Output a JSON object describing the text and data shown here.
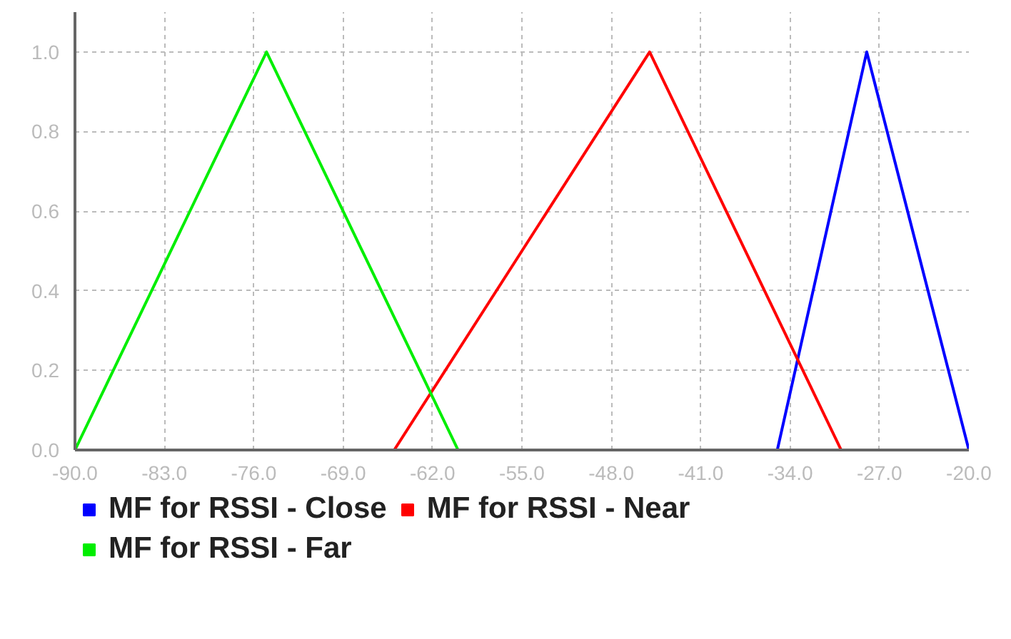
{
  "chart_data": {
    "type": "line",
    "series": [
      {
        "name": "MF for RSSI - Close",
        "color": "#0000ff",
        "x": [
          -35,
          -28,
          -20
        ],
        "values": [
          0,
          1.0,
          0
        ]
      },
      {
        "name": "MF for RSSI - Near",
        "color": "#ff0000",
        "x": [
          -65,
          -45,
          -30
        ],
        "values": [
          0,
          1.0,
          0
        ]
      },
      {
        "name": "MF for RSSI - Far",
        "color": "#00ee00",
        "x": [
          -90,
          -75,
          -60
        ],
        "values": [
          0,
          1.0,
          0
        ]
      }
    ],
    "xlim": [
      -90,
      -20
    ],
    "ylim": [
      0,
      1.1
    ],
    "xticks": [
      {
        "value": -90,
        "label": "-90.0"
      },
      {
        "value": -83,
        "label": "-83.0"
      },
      {
        "value": -76,
        "label": "-76.0"
      },
      {
        "value": -69,
        "label": "-69.0"
      },
      {
        "value": -62,
        "label": "-62.0"
      },
      {
        "value": -55,
        "label": "-55.0"
      },
      {
        "value": -48,
        "label": "-48.0"
      },
      {
        "value": -41,
        "label": "-41.0"
      },
      {
        "value": -34,
        "label": "-34.0"
      },
      {
        "value": -27,
        "label": "-27.0"
      },
      {
        "value": -20,
        "label": "-20.0"
      }
    ],
    "yticks": [
      {
        "value": 0,
        "label": "0.0"
      },
      {
        "value": 0.2,
        "label": "0.2"
      },
      {
        "value": 0.4,
        "label": "0.4"
      },
      {
        "value": 0.6,
        "label": "0.6"
      },
      {
        "value": 0.8,
        "label": "0.8"
      },
      {
        "value": 1.0,
        "label": "1.0"
      }
    ],
    "grid": true,
    "legend": "bottom",
    "line_style": "solid"
  }
}
